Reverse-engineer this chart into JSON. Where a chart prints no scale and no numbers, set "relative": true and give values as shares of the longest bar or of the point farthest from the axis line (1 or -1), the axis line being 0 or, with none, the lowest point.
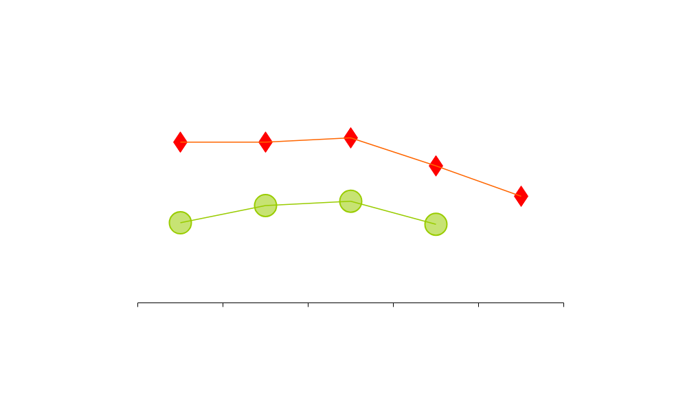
{
  "chart_data": {
    "type": "line",
    "relative": true,
    "categories": [
      null,
      null,
      null,
      null,
      null
    ],
    "series": [
      {
        "color": "#ff6600",
        "colors": [
          "#ff0000",
          "#ff0000",
          "#ff0000",
          "#ff0000",
          "#ff0000"
        ],
        "marker": "diamond",
        "values": [
          0.974,
          0.974,
          1,
          0.83,
          0.646
        ]
      },
      {
        "color": "#99cc00",
        "marker": "circle",
        "values": [
          0.485,
          0.59,
          0.616,
          0.476,
          null
        ]
      }
    ],
    "grid": false
  }
}
